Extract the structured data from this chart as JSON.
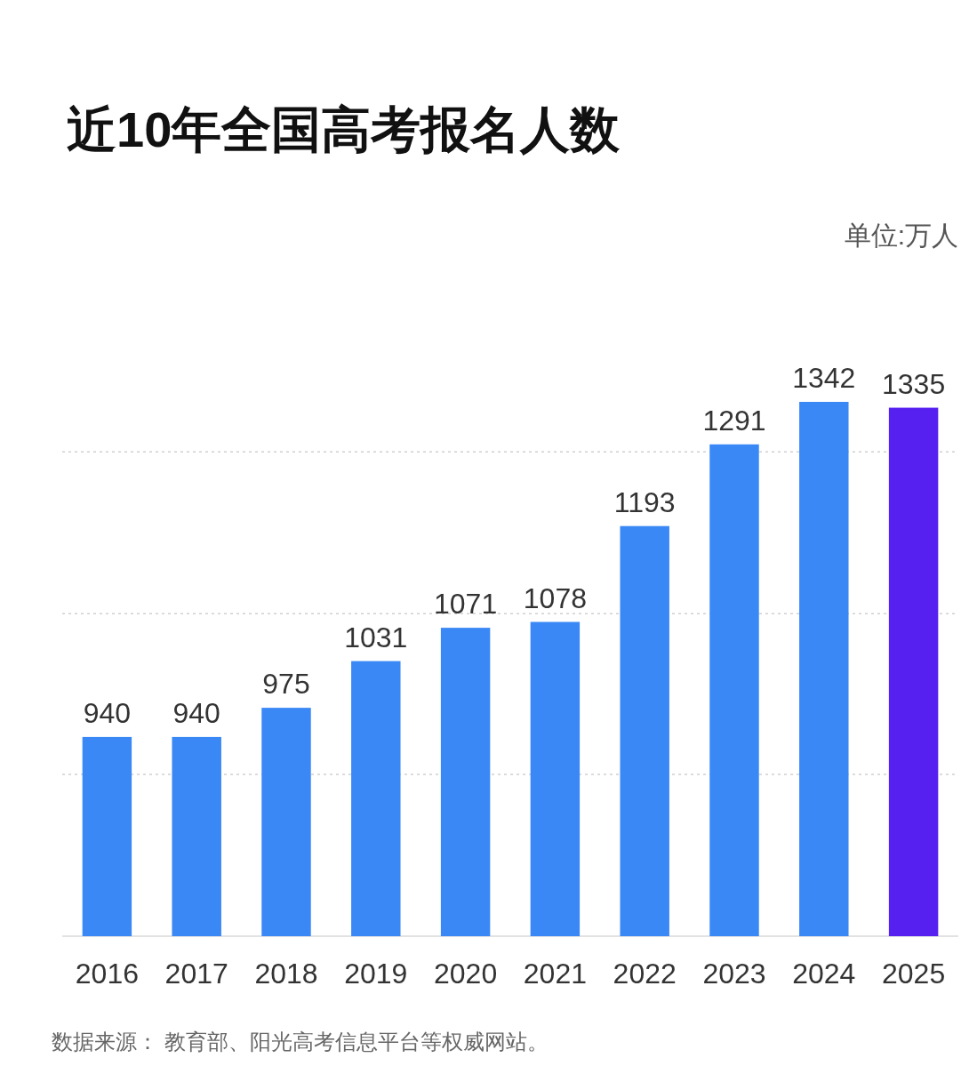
{
  "chart_data": {
    "type": "bar",
    "title": "近10年全国高考报名人数",
    "categories": [
      "2016",
      "2017",
      "2018",
      "2019",
      "2020",
      "2021",
      "2022",
      "2023",
      "2024",
      "2025"
    ],
    "values": [
      940,
      940,
      975,
      1031,
      1071,
      1078,
      1193,
      1291,
      1342,
      1335
    ],
    "colors": [
      "#3a88f5",
      "#3a88f5",
      "#3a88f5",
      "#3a88f5",
      "#3a88f5",
      "#3a88f5",
      "#3a88f5",
      "#3a88f5",
      "#3a88f5",
      "#5520f0"
    ],
    "ylim": [
      701,
      1342
    ],
    "yticks": [
      {
        "value": 895,
        "label": null
      },
      {
        "value": 1088,
        "label": null
      },
      {
        "value": 1282,
        "label": null
      }
    ],
    "grid": "y",
    "data_labels": true,
    "tick_labels": "x",
    "annotations": [
      "单位:万人",
      "数据来源： 教育部、阳光高考信息平台等权威网站。"
    ]
  }
}
